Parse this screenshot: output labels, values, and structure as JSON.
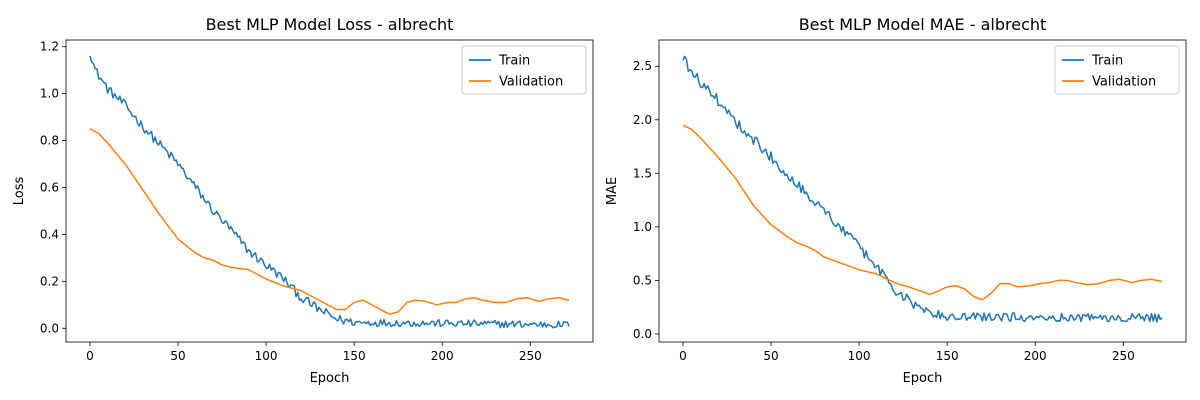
{
  "chart_data": [
    {
      "type": "line",
      "title": "Best MLP Model Loss - albrecht",
      "xlabel": "Epoch",
      "ylabel": "Loss",
      "xlim": [
        -13.6,
        285.6
      ],
      "ylim": [
        -0.0585,
        1.2285
      ],
      "xticks": [
        0,
        50,
        100,
        150,
        200,
        250
      ],
      "yticks": [
        0.0,
        0.2,
        0.4,
        0.6,
        0.8,
        1.0,
        1.2
      ],
      "ytick_format": 1,
      "legend_position": "top-right",
      "grid": false,
      "series": [
        {
          "name": "Train",
          "color": "#1f77b4",
          "trend": [
            [
              0,
              1.18
            ],
            [
              3,
              1.1
            ],
            [
              10,
              1.02
            ],
            [
              20,
              0.95
            ],
            [
              30,
              0.86
            ],
            [
              40,
              0.78
            ],
            [
              50,
              0.7
            ],
            [
              60,
              0.6
            ],
            [
              70,
              0.5
            ],
            [
              80,
              0.42
            ],
            [
              90,
              0.33
            ],
            [
              100,
              0.27
            ],
            [
              110,
              0.21
            ],
            [
              120,
              0.13
            ],
            [
              130,
              0.08
            ],
            [
              140,
              0.04
            ],
            [
              150,
              0.025
            ],
            [
              272,
              0.015
            ]
          ],
          "noise": 0.02,
          "n_points": 273
        },
        {
          "name": "Validation",
          "color": "#ff7f0e",
          "points": [
            [
              0,
              0.85
            ],
            [
              5,
              0.83
            ],
            [
              10,
              0.79
            ],
            [
              20,
              0.7
            ],
            [
              30,
              0.59
            ],
            [
              40,
              0.48
            ],
            [
              50,
              0.38
            ],
            [
              60,
              0.32
            ],
            [
              65,
              0.3
            ],
            [
              70,
              0.29
            ],
            [
              75,
              0.27
            ],
            [
              80,
              0.26
            ],
            [
              90,
              0.25
            ],
            [
              100,
              0.21
            ],
            [
              110,
              0.18
            ],
            [
              120,
              0.16
            ],
            [
              130,
              0.12
            ],
            [
              140,
              0.08
            ],
            [
              145,
              0.08
            ],
            [
              150,
              0.11
            ],
            [
              155,
              0.12
            ],
            [
              160,
              0.1
            ],
            [
              165,
              0.08
            ],
            [
              170,
              0.06
            ],
            [
              175,
              0.07
            ],
            [
              180,
              0.11
            ],
            [
              185,
              0.12
            ],
            [
              190,
              0.115
            ],
            [
              197,
              0.1
            ],
            [
              203,
              0.11
            ],
            [
              208,
              0.11
            ],
            [
              213,
              0.125
            ],
            [
              218,
              0.13
            ],
            [
              223,
              0.12
            ],
            [
              230,
              0.11
            ],
            [
              236,
              0.11
            ],
            [
              242,
              0.125
            ],
            [
              248,
              0.13
            ],
            [
              255,
              0.115
            ],
            [
              260,
              0.125
            ],
            [
              266,
              0.13
            ],
            [
              272,
              0.12
            ]
          ]
        }
      ]
    },
    {
      "type": "line",
      "title": "Best MLP Model MAE - albrecht",
      "xlabel": "Epoch",
      "ylabel": "MAE",
      "xlim": [
        -13.6,
        285.6
      ],
      "ylim": [
        -0.075,
        2.745
      ],
      "xticks": [
        0,
        50,
        100,
        150,
        200,
        250
      ],
      "yticks": [
        0.0,
        0.5,
        1.0,
        1.5,
        2.0,
        2.5
      ],
      "ytick_format": 1,
      "legend_position": "top-right",
      "grid": false,
      "series": [
        {
          "name": "Train",
          "color": "#1f77b4",
          "trend": [
            [
              0,
              2.6
            ],
            [
              3,
              2.48
            ],
            [
              10,
              2.35
            ],
            [
              20,
              2.18
            ],
            [
              30,
              1.98
            ],
            [
              40,
              1.82
            ],
            [
              50,
              1.65
            ],
            [
              60,
              1.48
            ],
            [
              70,
              1.32
            ],
            [
              80,
              1.15
            ],
            [
              90,
              0.98
            ],
            [
              100,
              0.82
            ],
            [
              110,
              0.62
            ],
            [
              120,
              0.42
            ],
            [
              130,
              0.28
            ],
            [
              140,
              0.2
            ],
            [
              150,
              0.16
            ],
            [
              272,
              0.15
            ]
          ],
          "noise": 0.05,
          "n_points": 273
        },
        {
          "name": "Validation",
          "color": "#ff7f0e",
          "points": [
            [
              0,
              1.95
            ],
            [
              5,
              1.91
            ],
            [
              10,
              1.83
            ],
            [
              20,
              1.65
            ],
            [
              30,
              1.45
            ],
            [
              40,
              1.2
            ],
            [
              50,
              1.02
            ],
            [
              60,
              0.9
            ],
            [
              65,
              0.85
            ],
            [
              70,
              0.82
            ],
            [
              75,
              0.78
            ],
            [
              80,
              0.72
            ],
            [
              90,
              0.66
            ],
            [
              100,
              0.6
            ],
            [
              110,
              0.56
            ],
            [
              120,
              0.48
            ],
            [
              130,
              0.43
            ],
            [
              140,
              0.37
            ],
            [
              145,
              0.4
            ],
            [
              150,
              0.44
            ],
            [
              155,
              0.45
            ],
            [
              160,
              0.42
            ],
            [
              165,
              0.35
            ],
            [
              170,
              0.32
            ],
            [
              175,
              0.38
            ],
            [
              180,
              0.47
            ],
            [
              185,
              0.47
            ],
            [
              190,
              0.44
            ],
            [
              197,
              0.45
            ],
            [
              203,
              0.47
            ],
            [
              208,
              0.48
            ],
            [
              213,
              0.5
            ],
            [
              218,
              0.5
            ],
            [
              223,
              0.48
            ],
            [
              230,
              0.46
            ],
            [
              236,
              0.47
            ],
            [
              242,
              0.5
            ],
            [
              248,
              0.51
            ],
            [
              255,
              0.48
            ],
            [
              260,
              0.5
            ],
            [
              266,
              0.51
            ],
            [
              272,
              0.49
            ]
          ]
        }
      ]
    }
  ]
}
